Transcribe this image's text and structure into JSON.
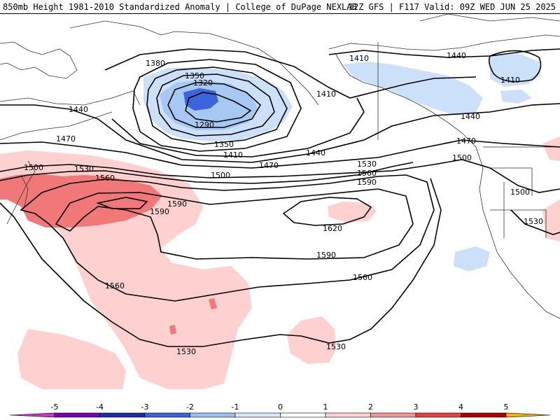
{
  "header": {
    "title": "850mb Height 1981-2010 Standardized Anomaly | College of DuPage NEXLAB",
    "run_info": "12Z GFS | F117 Valid: 09Z WED JUN 25 2025"
  },
  "map": {
    "contour_labels": [
      {
        "id": "c1380",
        "text": "1380"
      },
      {
        "id": "c1350a",
        "text": "1350"
      },
      {
        "id": "c1320",
        "text": "1320"
      },
      {
        "id": "c1290",
        "text": "1290"
      },
      {
        "id": "c1350b",
        "text": "1350"
      },
      {
        "id": "c1410a",
        "text": "1410"
      },
      {
        "id": "c1410b",
        "text": "1410"
      },
      {
        "id": "c1410c",
        "text": "1410"
      },
      {
        "id": "c1410d",
        "text": "1410"
      },
      {
        "id": "c1440a",
        "text": "1440"
      },
      {
        "id": "c1440b",
        "text": "1440"
      },
      {
        "id": "c1440c",
        "text": "1440"
      },
      {
        "id": "c1440d",
        "text": "1440"
      },
      {
        "id": "c1470a",
        "text": "1470"
      },
      {
        "id": "c1470b",
        "text": "1470"
      },
      {
        "id": "c1470c",
        "text": "1470"
      },
      {
        "id": "c1500a",
        "text": "1500"
      },
      {
        "id": "c1500b",
        "text": "1500"
      },
      {
        "id": "c1500c",
        "text": "1500"
      },
      {
        "id": "c1500d",
        "text": "1500"
      },
      {
        "id": "c1530a",
        "text": "1530"
      },
      {
        "id": "c1530b",
        "text": "1530"
      },
      {
        "id": "c1530c",
        "text": "1530"
      },
      {
        "id": "c1530d",
        "text": "1530"
      },
      {
        "id": "c1530e",
        "text": "1530"
      },
      {
        "id": "c1560a",
        "text": "1560"
      },
      {
        "id": "c1560b",
        "text": "1560"
      },
      {
        "id": "c1560c",
        "text": "1560"
      },
      {
        "id": "c1560d",
        "text": "1560"
      },
      {
        "id": "c1590a",
        "text": "1590"
      },
      {
        "id": "c1590b",
        "text": "1590"
      },
      {
        "id": "c1590c",
        "text": "1590"
      },
      {
        "id": "c1590d",
        "text": "1590"
      },
      {
        "id": "c1620",
        "text": "1620"
      }
    ]
  },
  "colorbar": {
    "ticks": [
      "-5",
      "-4",
      "-3",
      "-2",
      "-1",
      "0",
      "1",
      "2",
      "3",
      "4",
      "5"
    ],
    "colors": [
      "#cc33cc",
      "#7a00b0",
      "#1d2e9e",
      "#3a62d9",
      "#9cc0f2",
      "#d9e8fb",
      "#ffffff",
      "#ffd0d0",
      "#f49494",
      "#e84040",
      "#b00000",
      "#ff8c00",
      "#ffb000"
    ]
  }
}
